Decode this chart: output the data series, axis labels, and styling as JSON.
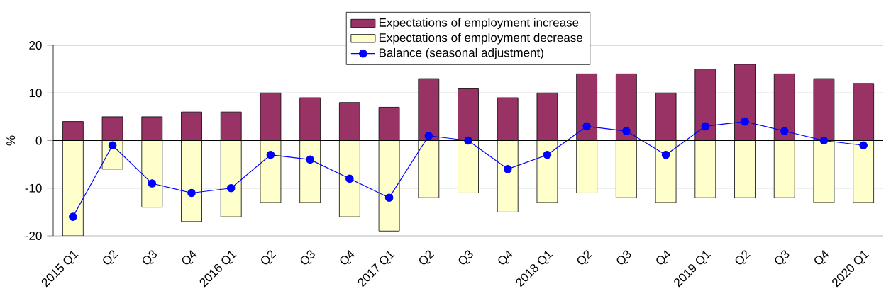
{
  "chart_data": {
    "type": "bar",
    "ylabel": "%",
    "stacked": true,
    "categories": [
      "2015 Q1",
      "Q2",
      "Q3",
      "Q4",
      "2016 Q1",
      "Q2",
      "Q3",
      "Q4",
      "2017 Q1",
      "Q2",
      "Q3",
      "Q4",
      "2018 Q1",
      "Q2",
      "Q3",
      "Q4",
      "2019 Q1",
      "Q2",
      "Q3",
      "Q4",
      "2020 Q1"
    ],
    "series": [
      {
        "name": "Expectations of employment increase",
        "color": "#993366",
        "values": [
          4,
          5,
          5,
          6,
          6,
          10,
          9,
          8,
          7,
          13,
          11,
          9,
          10,
          14,
          14,
          10,
          15,
          16,
          14,
          13,
          12
        ]
      },
      {
        "name": "Expectations of employment decrease",
        "color": "#ffffcc",
        "values": [
          -20,
          -6,
          -14,
          -17,
          -16,
          -13,
          -13,
          -16,
          -19,
          -12,
          -11,
          -15,
          -13,
          -11,
          -12,
          -13,
          -12,
          -12,
          -12,
          -13,
          -13
        ]
      },
      {
        "name": "Balance  (seasonal adjustment)",
        "type": "line",
        "color": "#0000ff",
        "marker": "circle",
        "values": [
          -16,
          -1,
          -9,
          -11,
          -10,
          -3,
          -4,
          -8,
          -12,
          1,
          0,
          -6,
          -3,
          3,
          2,
          -3,
          3,
          4,
          2,
          0,
          -1
        ]
      }
    ],
    "ylim": [
      -20,
      20
    ],
    "yticks": [
      -20,
      -10,
      0,
      10,
      20
    ],
    "grid": "y",
    "legend": "top"
  }
}
